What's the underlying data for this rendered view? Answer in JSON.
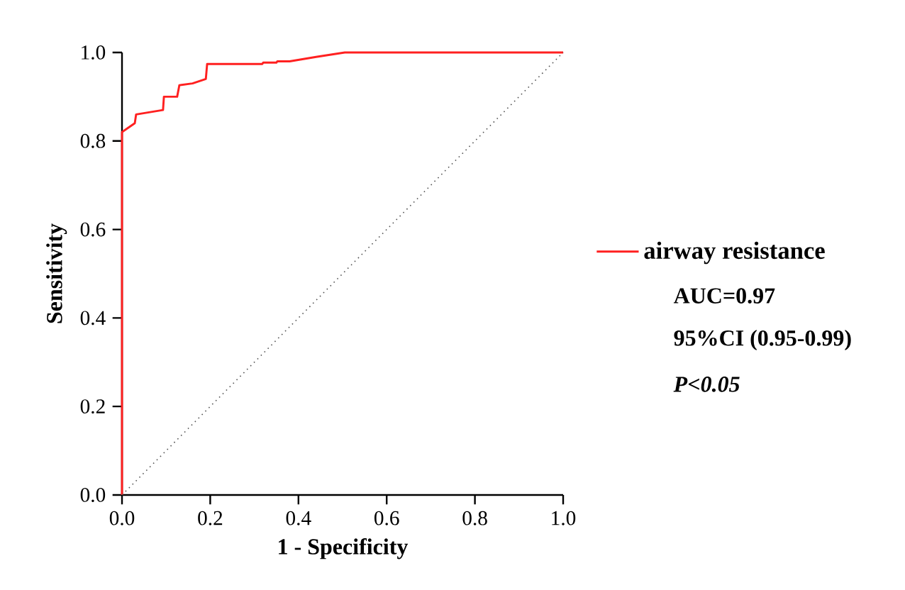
{
  "chart_data": {
    "type": "line",
    "xlabel": "1 - Specificity",
    "ylabel": "Sensitivity",
    "xlim": [
      0,
      1
    ],
    "ylim": [
      0,
      1
    ],
    "xticks": [
      {
        "value": 0,
        "label": "0.0"
      },
      0.2,
      0.4,
      0.6,
      0.8,
      {
        "value": 1,
        "label": "1.0"
      }
    ],
    "yticks": [
      {
        "value": 0,
        "label": "0.0"
      },
      0.2,
      0.4,
      0.6,
      0.8,
      {
        "value": 1,
        "label": "1.0"
      }
    ],
    "series": [
      {
        "name": "airway resistance",
        "color": "#ff2020",
        "x": [
          0,
          0,
          0.029,
          0.032,
          0.093,
          0.095,
          0.125,
          0.13,
          0.16,
          0.19,
          0.193,
          0.318,
          0.32,
          0.35,
          0.352,
          0.38,
          0.44,
          0.505,
          1
        ],
        "values": [
          0,
          0.82,
          0.84,
          0.86,
          0.87,
          0.9,
          0.9,
          0.926,
          0.93,
          0.94,
          0.974,
          0.974,
          0.977,
          0.977,
          0.98,
          0.98,
          0.99,
          1,
          1
        ]
      },
      {
        "type": "line",
        "color": "#555555",
        "line_style": "dotted",
        "x": [
          0,
          1
        ],
        "values": [
          0,
          1
        ]
      }
    ],
    "legend": "right",
    "grid": false,
    "annotations": [
      "AUC=0.97",
      "95%CI (0.95-0.99)",
      "*P*<*0.05*"
    ]
  }
}
